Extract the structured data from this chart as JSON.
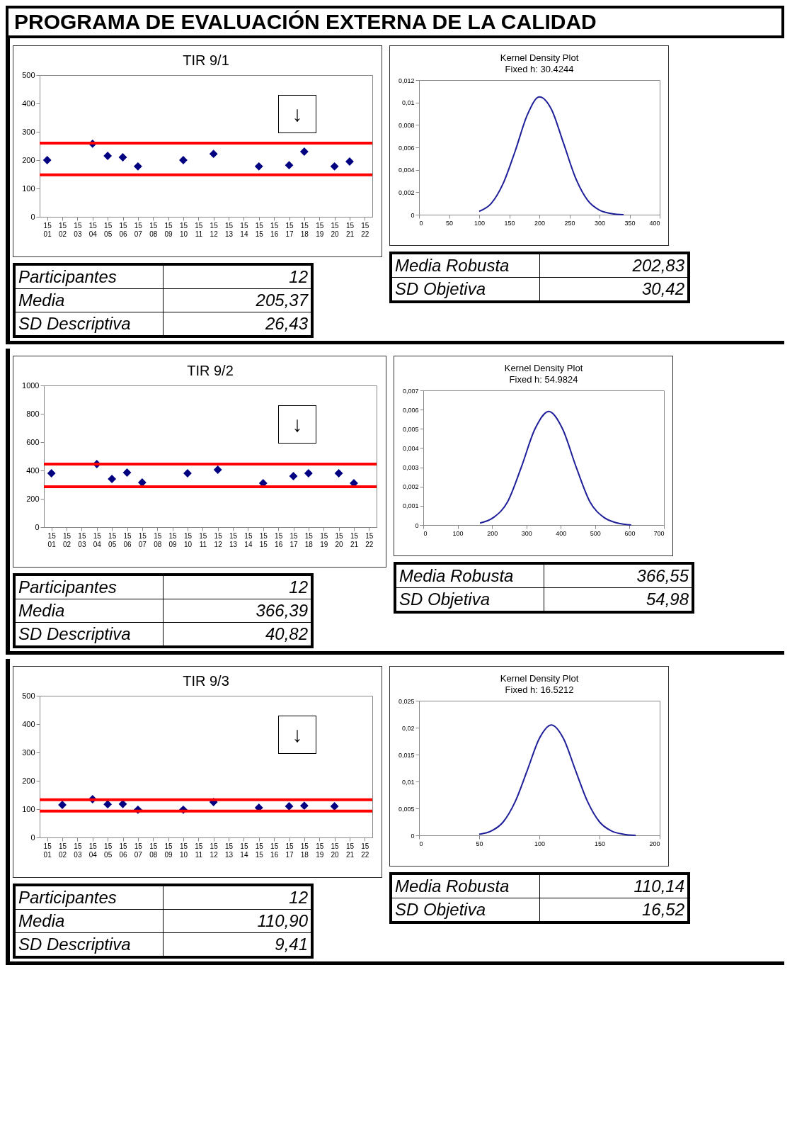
{
  "chart_data": [
    {
      "type": "other",
      "title": "PROGRAMA DE EVALUACIÓN EXTERNA DE LA CALIDAD"
    },
    {
      "type": "scatter",
      "title": "TIR 9/1",
      "marker": "diamond",
      "categories": [
        "15 01",
        "15 02",
        "15 03",
        "15 04",
        "15 05",
        "15 06",
        "15 07",
        "15 08",
        "15 09",
        "15 10",
        "15 11",
        "15 12",
        "15 13",
        "15 14",
        "15 15",
        "15 16",
        "15 17",
        "15 18",
        "15 19",
        "15 20",
        "15 21",
        "15 22"
      ],
      "series": [
        {
          "color": "#000080",
          "values": [
            200,
            null,
            null,
            258,
            215,
            210,
            178,
            null,
            null,
            200,
            null,
            222,
            null,
            null,
            178,
            null,
            182,
            230,
            null,
            178,
            195,
            null
          ]
        }
      ],
      "ylim": [
        0,
        500
      ],
      "yticks": [
        0,
        100,
        200,
        300,
        400,
        500
      ],
      "ref_lines": [
        {
          "axis": "y",
          "value": 260,
          "color": "#ff0000"
        },
        {
          "axis": "y",
          "value": 148,
          "color": "#ff0000"
        }
      ],
      "annotations": [
        "↓",
        "Participantes",
        "12",
        "Media",
        "205,37",
        "SD Descriptiva",
        "26,43"
      ]
    },
    {
      "type": "line",
      "title": "Kernel Density Plot",
      "subtitle": "Fixed h: 30.4244",
      "x": [
        100,
        120,
        140,
        160,
        180,
        200,
        220,
        240,
        260,
        280,
        300,
        320,
        340
      ],
      "series": [
        {
          "color": "#1f1f9a",
          "values": [
            0.0003,
            0.001,
            0.0028,
            0.0057,
            0.0089,
            0.0105,
            0.0094,
            0.0064,
            0.0033,
            0.0013,
            0.0004,
            0.0001,
            0
          ]
        }
      ],
      "xlim": [
        0,
        400
      ],
      "xticks": [
        0,
        50,
        100,
        150,
        200,
        250,
        300,
        350,
        400
      ],
      "ylim": [
        0,
        0.012
      ],
      "yticks": [
        0,
        {
          "value": 0.002,
          "label": "0,002"
        },
        {
          "value": 0.004,
          "label": "0,004"
        },
        {
          "value": 0.006,
          "label": "0,006"
        },
        {
          "value": 0.008,
          "label": "0,008"
        },
        {
          "value": 0.01,
          "label": "0,01"
        },
        {
          "value": 0.012,
          "label": "0,012"
        }
      ],
      "annotations": [
        "Media Robusta",
        "202,83",
        "SD Objetiva",
        "30,42"
      ]
    },
    {
      "type": "scatter",
      "title": "TIR  9/2",
      "marker": "diamond",
      "categories": [
        "15 01",
        "15 02",
        "15 03",
        "15 04",
        "15 05",
        "15 06",
        "15 07",
        "15 08",
        "15 09",
        "15 10",
        "15 11",
        "15 12",
        "15 13",
        "15 14",
        "15 15",
        "15 16",
        "15 17",
        "15 18",
        "15 19",
        "15 20",
        "15 21",
        "15 22"
      ],
      "series": [
        {
          "color": "#000080",
          "values": [
            380,
            null,
            null,
            445,
            340,
            385,
            315,
            null,
            null,
            380,
            null,
            405,
            null,
            null,
            310,
            null,
            360,
            380,
            null,
            380,
            310,
            null
          ]
        }
      ],
      "ylim": [
        0,
        1000
      ],
      "yticks": [
        0,
        200,
        400,
        600,
        800,
        1000
      ],
      "ref_lines": [
        {
          "axis": "y",
          "value": 445,
          "color": "#ff0000"
        },
        {
          "axis": "y",
          "value": 285,
          "color": "#ff0000"
        }
      ],
      "annotations": [
        "↓",
        "Participantes",
        "12",
        "Media",
        "366,39",
        "SD Descriptiva",
        "40,82"
      ]
    },
    {
      "type": "line",
      "title": "Kernel Density Plot",
      "subtitle": "Fixed h: 54.9824",
      "x": [
        165,
        205,
        245,
        285,
        325,
        365,
        405,
        445,
        485,
        525,
        565,
        605
      ],
      "series": [
        {
          "color": "#1f1f9a",
          "values": [
            0.0001,
            0.0004,
            0.0012,
            0.003,
            0.005,
            0.0059,
            0.005,
            0.003,
            0.0012,
            0.0004,
            0.0001,
            0
          ]
        }
      ],
      "xlim": [
        0,
        700
      ],
      "xticks": [
        0,
        100,
        200,
        300,
        400,
        500,
        600,
        700
      ],
      "ylim": [
        0,
        0.007
      ],
      "yticks": [
        0,
        {
          "value": 0.001,
          "label": "0,001"
        },
        {
          "value": 0.002,
          "label": "0,002"
        },
        {
          "value": 0.003,
          "label": "0,003"
        },
        {
          "value": 0.004,
          "label": "0,004"
        },
        {
          "value": 0.005,
          "label": "0,005"
        },
        {
          "value": 0.006,
          "label": "0,006"
        },
        {
          "value": 0.007,
          "label": "0,007"
        }
      ],
      "annotations": [
        "Media Robusta",
        "366,55",
        "SD Objetiva",
        "54,98"
      ]
    },
    {
      "type": "scatter",
      "title": "TIR 9/3",
      "marker": "diamond",
      "categories": [
        "15 01",
        "15 02",
        "15 03",
        "15 04",
        "15 05",
        "15 06",
        "15 07",
        "15 08",
        "15 09",
        "15 10",
        "15 11",
        "15 12",
        "15 13",
        "15 14",
        "15 15",
        "15 16",
        "15 17",
        "15 18",
        "15 19",
        "15 20",
        "15 21",
        "15 22"
      ],
      "series": [
        {
          "color": "#000080",
          "values": [
            null,
            115,
            null,
            135,
            117,
            118,
            98,
            null,
            null,
            98,
            null,
            125,
            null,
            null,
            105,
            null,
            110,
            112,
            null,
            110,
            null,
            null
          ]
        }
      ],
      "ylim": [
        0,
        500
      ],
      "yticks": [
        0,
        100,
        200,
        300,
        400,
        500
      ],
      "ref_lines": [
        {
          "axis": "y",
          "value": 133,
          "color": "#ff0000"
        },
        {
          "axis": "y",
          "value": 93,
          "color": "#ff0000"
        }
      ],
      "annotations": [
        "↓",
        "Participantes",
        "12",
        "Media",
        "110,90",
        "SD Descriptiva",
        "9,41"
      ]
    },
    {
      "type": "line",
      "title": "Kernel Density Plot",
      "subtitle": "Fixed h: 16.5212",
      "x": [
        50,
        60,
        70,
        80,
        90,
        100,
        110,
        120,
        130,
        140,
        150,
        160,
        170,
        180
      ],
      "series": [
        {
          "color": "#1f1f9a",
          "values": [
            0.0002,
            0.0008,
            0.0025,
            0.0063,
            0.0121,
            0.018,
            0.0205,
            0.018,
            0.0121,
            0.0063,
            0.0025,
            0.0008,
            0.0002,
            0
          ]
        }
      ],
      "xlim": [
        0,
        200
      ],
      "xticks": [
        0,
        50,
        100,
        150,
        200
      ],
      "ylim": [
        0,
        0.025
      ],
      "yticks": [
        0,
        {
          "value": 0.005,
          "label": "0,005"
        },
        {
          "value": 0.01,
          "label": "0,01"
        },
        {
          "value": 0.015,
          "label": "0,015"
        },
        {
          "value": 0.02,
          "label": "0,02"
        },
        {
          "value": 0.025,
          "label": "0,025"
        }
      ],
      "annotations": [
        "Media Robusta",
        "110,14",
        "SD Objetiva",
        "16,52"
      ]
    }
  ]
}
